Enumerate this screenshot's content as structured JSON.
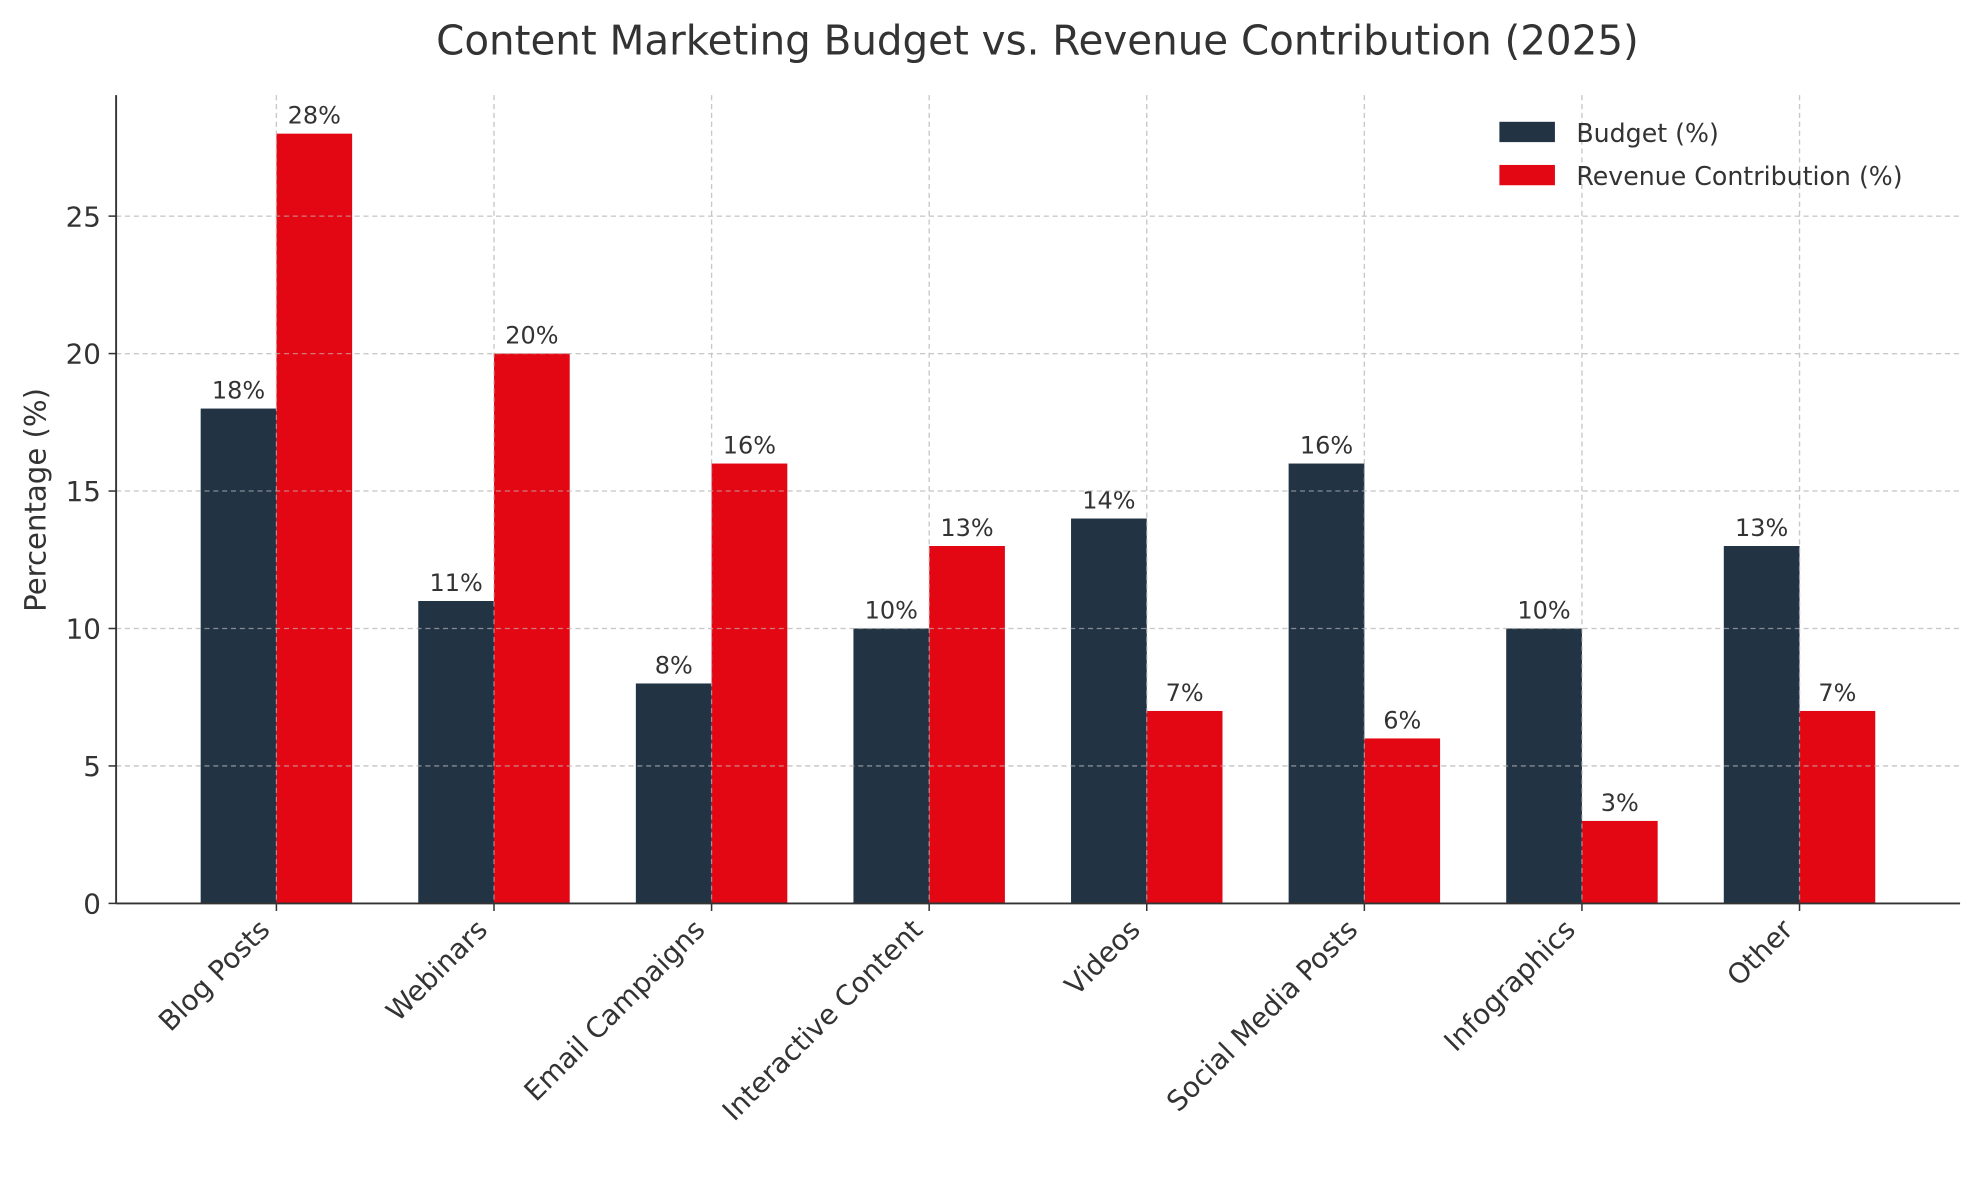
{
  "chart_data": {
    "type": "bar",
    "title": "Content Marketing Budget vs. Revenue Contribution (2025)",
    "xlabel": "",
    "ylabel": "Percentage (%)",
    "categories": [
      "Blog Posts",
      "Webinars",
      "Email Campaigns",
      "Interactive Content",
      "Videos",
      "Social Media Posts",
      "Infographics",
      "Other"
    ],
    "series": [
      {
        "name": "Budget (%)",
        "color": "#223344",
        "values": [
          18,
          11,
          8,
          10,
          14,
          16,
          10,
          13
        ]
      },
      {
        "name": "Revenue Contribution (%)",
        "color": "#E30613",
        "values": [
          28,
          20,
          16,
          13,
          7,
          6,
          3,
          7
        ]
      }
    ],
    "data_label_suffix": "%",
    "ylim": [
      0,
      29.4
    ],
    "yticks": [
      0,
      5,
      10,
      15,
      20,
      25
    ],
    "grid": true,
    "legend": "top-right"
  }
}
